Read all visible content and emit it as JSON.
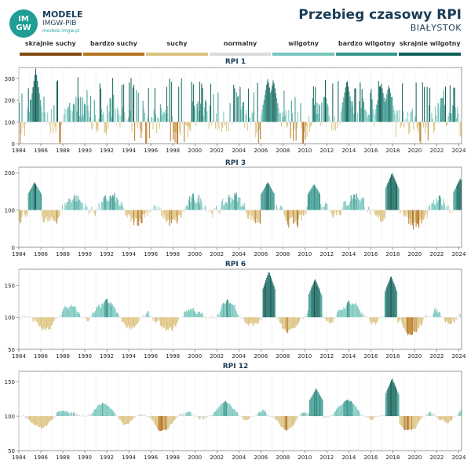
{
  "header": {
    "logo_text": "IM GW",
    "brand_name": "MODELE",
    "brand_sub": "IMGW-PIB",
    "brand_url": "modele.imgw.pl",
    "title": "Przebieg czasowy RPI",
    "station": "BIAŁYSTOK"
  },
  "legend": [
    {
      "label": "skrajnie suchy",
      "color": "#7f4a10"
    },
    {
      "label": "bardzo suchy",
      "color": "#b5741f"
    },
    {
      "label": "suchy",
      "color": "#dcc27e"
    },
    {
      "label": "normalny",
      "color": "#dcdcdc"
    },
    {
      "label": "wilgotny",
      "color": "#77c6bd"
    },
    {
      "label": "bardzo wilgotny",
      "color": "#35968c"
    },
    {
      "label": "skrajnie wilgotny",
      "color": "#0d5f57"
    }
  ],
  "chart_data": [
    {
      "type": "bar",
      "title": "RPI 1",
      "baseline": 100,
      "ylim": [
        0,
        350
      ],
      "yticks": [
        0,
        100,
        200,
        300
      ],
      "xlim": [
        1984,
        2024.25
      ],
      "xticks": [
        "1984",
        "1986",
        "1988",
        "1990",
        "1992",
        "1994",
        "1996",
        "1998",
        "2000",
        "2002",
        "2004",
        "2006",
        "2008",
        "2010",
        "2012",
        "2014",
        "2016",
        "2018",
        "2020",
        "2022",
        "2024"
      ],
      "anomalies": [
        {
          "date": 1985.5,
          "value": 345
        },
        {
          "date": 2006.6,
          "value": 300
        },
        {
          "date": 2007.1,
          "value": 295
        },
        {
          "date": 2013.8,
          "value": 295
        },
        {
          "date": 2016.9,
          "value": 280
        },
        {
          "date": 2017.6,
          "value": 270
        }
      ]
    },
    {
      "type": "bar",
      "title": "RPI 3",
      "baseline": 100,
      "ylim": [
        0,
        215
      ],
      "yticks": [
        0,
        100,
        200
      ],
      "xlim": [
        1984,
        2024.25
      ],
      "xticks": [
        "1984",
        "1986",
        "1988",
        "1990",
        "1992",
        "1994",
        "1996",
        "1998",
        "2000",
        "2002",
        "2004",
        "2006",
        "2008",
        "2010",
        "2012",
        "2014",
        "2016",
        "2018",
        "2020",
        "2022",
        "2024"
      ],
      "anomalies": [
        {
          "date": 1985.4,
          "value": 175
        },
        {
          "date": 2006.6,
          "value": 175
        },
        {
          "date": 2010.8,
          "value": 170
        },
        {
          "date": 2017.9,
          "value": 200
        },
        {
          "date": 2024.1,
          "value": 185
        }
      ]
    },
    {
      "type": "bar",
      "title": "RPI 6",
      "baseline": 100,
      "ylim": [
        50,
        175
      ],
      "yticks": [
        50,
        100,
        150
      ],
      "xlim": [
        1984,
        2024.25
      ],
      "xticks": [
        "1984",
        "1986",
        "1988",
        "1990",
        "1992",
        "1994",
        "1996",
        "1998",
        "2000",
        "2002",
        "2004",
        "2006",
        "2008",
        "2010",
        "2012",
        "2014",
        "2016",
        "2018",
        "2020",
        "2022",
        "2024"
      ],
      "anomalies": [
        {
          "date": 2006.7,
          "value": 172
        },
        {
          "date": 2010.9,
          "value": 160
        },
        {
          "date": 2017.8,
          "value": 165
        }
      ]
    },
    {
      "type": "bar",
      "title": "RPI 12",
      "baseline": 100,
      "ylim": [
        50,
        165
      ],
      "yticks": [
        50,
        100,
        150
      ],
      "xlim": [
        1984,
        2024.25
      ],
      "xticks": [
        "1984",
        "1986",
        "1988",
        "1990",
        "1992",
        "1994",
        "1996",
        "1998",
        "2000",
        "2002",
        "2004",
        "2006",
        "2008",
        "2010",
        "2012",
        "2014",
        "2016",
        "2018",
        "2020",
        "2022",
        "2024"
      ],
      "anomalies": [
        {
          "date": 2011.0,
          "value": 140
        },
        {
          "date": 2017.9,
          "value": 155
        }
      ]
    }
  ]
}
